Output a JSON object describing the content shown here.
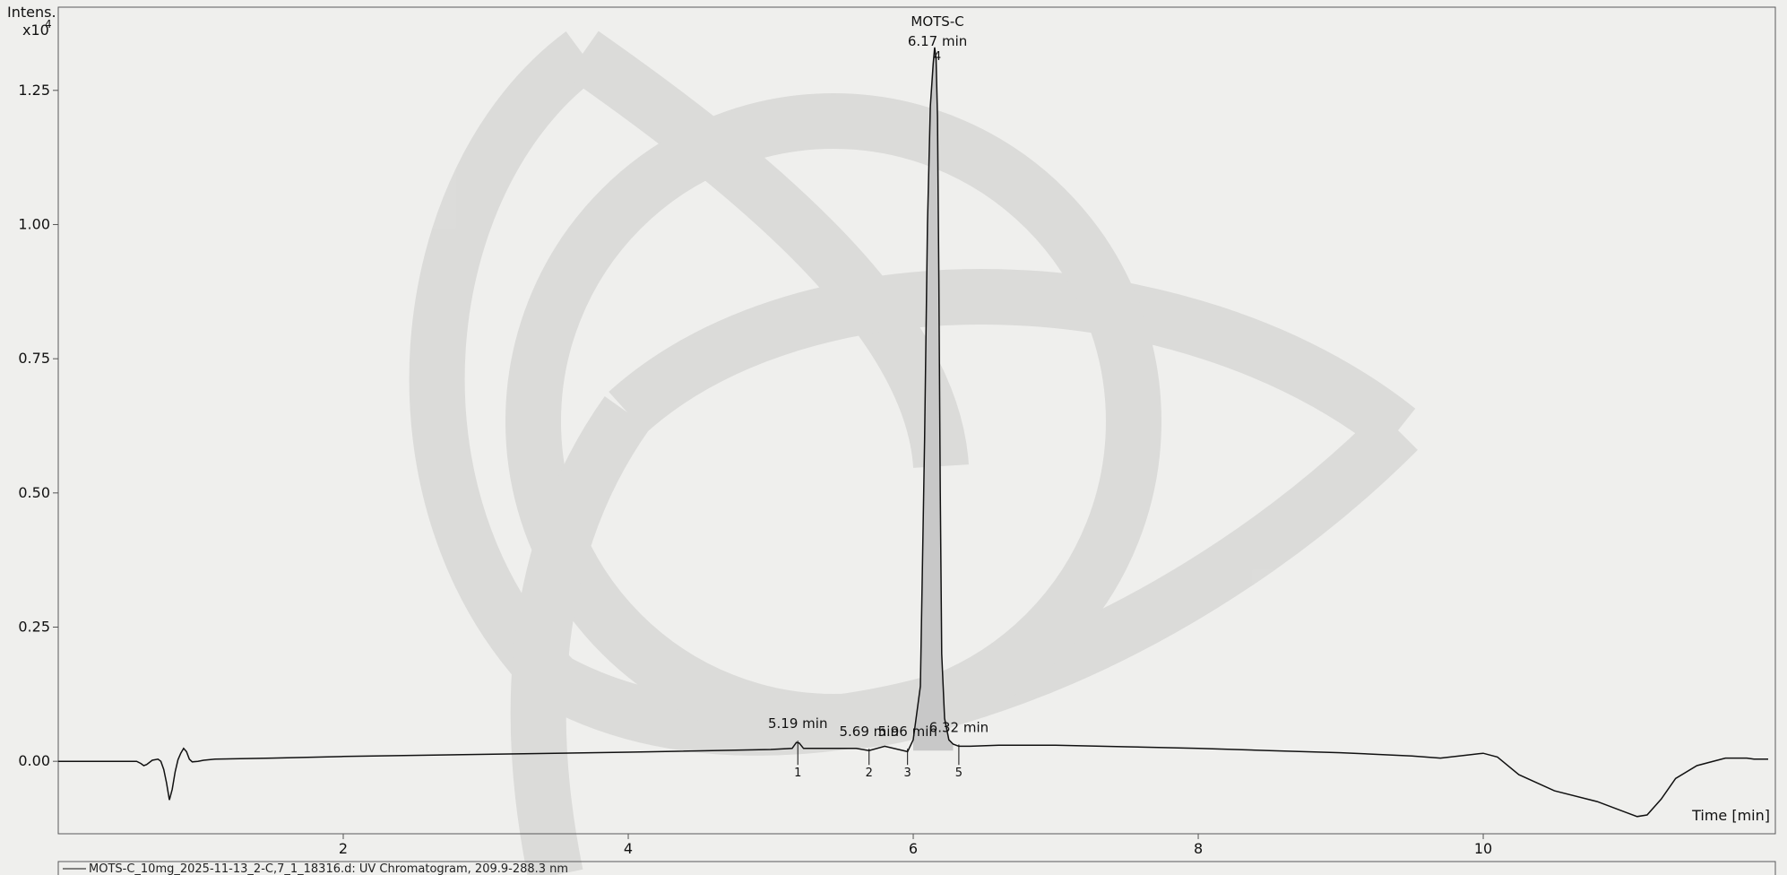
{
  "chart_data": {
    "type": "line",
    "title": "",
    "ylabel": "Intens.",
    "y_multiplier": "x10",
    "y_exponent": "4",
    "xlabel": "Time [min]",
    "xlim": [
      0,
      12.05
    ],
    "ylim": [
      -0.135,
      1.405
    ],
    "x_ticks": [
      2,
      4,
      6,
      8,
      10
    ],
    "x_tick_labels": [
      "2",
      "4",
      "6",
      "8",
      "10"
    ],
    "y_ticks": [
      0.0,
      0.25,
      0.5,
      0.75,
      1.0,
      1.25
    ],
    "y_tick_labels": [
      "0.00",
      "0.25",
      "0.50",
      "0.75",
      "1.00",
      "1.25"
    ],
    "grid": false,
    "legend_position": "bottom",
    "series": [
      {
        "name": "MOTS-C_10mg_2025-11-13_2-C,7_1_18316.d: UV Chromatogram, 209.9-288.3 nm",
        "x": [
          0.0,
          0.5,
          0.55,
          0.58,
          0.6,
          0.62,
          0.66,
          0.7,
          0.72,
          0.74,
          0.76,
          0.78,
          0.8,
          0.82,
          0.84,
          0.86,
          0.88,
          0.9,
          0.92,
          0.94,
          0.98,
          1.02,
          1.1,
          1.5,
          2.0,
          3.0,
          4.0,
          5.0,
          5.15,
          5.18,
          5.2,
          5.23,
          5.3,
          5.6,
          5.69,
          5.8,
          5.96,
          6.0,
          6.05,
          6.08,
          6.1,
          6.12,
          6.14,
          6.15,
          6.16,
          6.17,
          6.18,
          6.19,
          6.2,
          6.22,
          6.25,
          6.28,
          6.32,
          6.4,
          6.6,
          7.0,
          7.5,
          8.0,
          8.5,
          9.0,
          9.5,
          9.7,
          9.9,
          10.0,
          10.1,
          10.25,
          10.5,
          10.8,
          11.0,
          11.08,
          11.15,
          11.25,
          11.35,
          11.5,
          11.7,
          11.85,
          11.9,
          12.0
        ],
        "y": [
          0.0,
          0.0,
          0.0,
          -0.004,
          -0.008,
          -0.006,
          0.002,
          0.004,
          0.0,
          -0.015,
          -0.04,
          -0.072,
          -0.052,
          -0.02,
          0.003,
          0.015,
          0.024,
          0.018,
          0.004,
          -0.001,
          0.0,
          0.002,
          0.004,
          0.006,
          0.009,
          0.013,
          0.017,
          0.022,
          0.024,
          0.035,
          0.034,
          0.024,
          0.024,
          0.024,
          0.02,
          0.028,
          0.018,
          0.04,
          0.14,
          0.6,
          1.0,
          1.22,
          1.3,
          1.33,
          1.31,
          1.2,
          0.9,
          0.5,
          0.2,
          0.08,
          0.04,
          0.032,
          0.028,
          0.028,
          0.03,
          0.03,
          0.027,
          0.024,
          0.02,
          0.016,
          0.01,
          0.006,
          0.012,
          0.015,
          0.008,
          -0.025,
          -0.055,
          -0.075,
          -0.095,
          -0.103,
          -0.1,
          -0.07,
          -0.032,
          -0.008,
          0.006,
          0.006,
          0.004,
          0.004
        ]
      }
    ],
    "peak_labels": [
      {
        "id": "peak-4",
        "name": "MOTS-C",
        "time": "6.17 min",
        "number": "4",
        "x": 6.17,
        "y": 1.33
      },
      {
        "id": "peak-1",
        "time": "5.19 min",
        "number": "1",
        "x": 5.19,
        "y": 0.035
      },
      {
        "id": "peak-2",
        "time": "5.69 min",
        "number": "2",
        "x": 5.69,
        "y": 0.02
      },
      {
        "id": "peak-3",
        "time": "5.96 min",
        "number": "3",
        "x": 5.96,
        "y": 0.02
      },
      {
        "id": "peak-5",
        "time": "6.32 min",
        "number": "5",
        "x": 6.32,
        "y": 0.028
      }
    ],
    "main_peak_shaded": true,
    "colors": {
      "background": "#efefed",
      "trace": "#111111",
      "axis": "#555555",
      "fill": "#c8c8c8",
      "watermark": "#d8d8d6"
    },
    "watermark": "triquetra-logo"
  }
}
